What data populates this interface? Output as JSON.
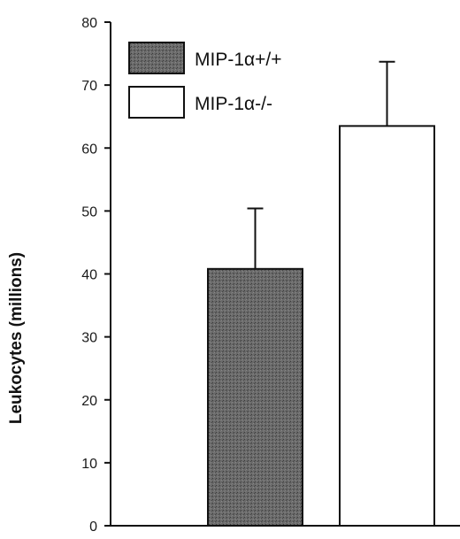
{
  "chart_data": {
    "type": "bar",
    "title": "",
    "xlabel": "",
    "ylabel": "Leukocytes (millions)",
    "ylim": [
      0,
      80
    ],
    "yticks": [
      0,
      10,
      20,
      30,
      40,
      50,
      60,
      70,
      80
    ],
    "grid": false,
    "legend_position": "top-left",
    "series": [
      {
        "name": "MIP-1α+/+",
        "value": 40.8,
        "error": 9.6,
        "color": "#5e5e5e",
        "pattern": "stippled"
      },
      {
        "name": "MIP-1α-/-",
        "value": 63.5,
        "error": 10.2,
        "color": "#ffffff"
      }
    ]
  }
}
